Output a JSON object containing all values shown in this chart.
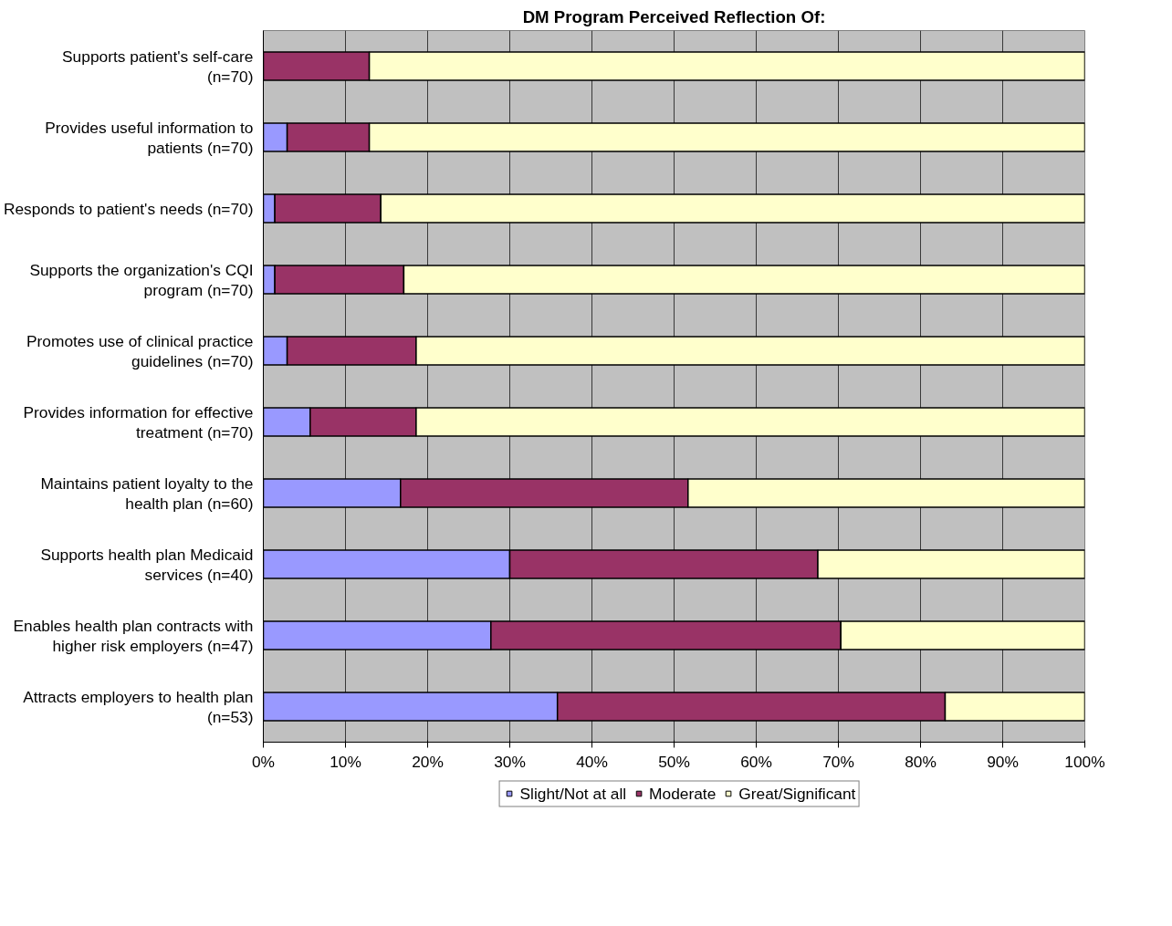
{
  "chart_data": {
    "type": "bar",
    "orientation": "horizontal",
    "stacked": true,
    "title": "DM Program Perceived Reflection Of:",
    "categories": [
      "Supports patient's self-care (n=70)",
      "Provides useful information to patients (n=70)",
      "Responds to patient's needs (n=70)",
      "Supports the organization's CQI program (n=70)",
      "Promotes use of clinical practice guidelines (n=70)",
      "Provides information for effective treatment (n=70)",
      "Maintains patient loyalty to the health plan (n=60)",
      "Supports health plan Medicaid services (n=40)",
      "Enables health plan contracts with higher risk employers (n=47)",
      "Attracts employers to health plan (n=53)"
    ],
    "series": [
      {
        "name": "Slight/Not at all",
        "color": "#9999ff",
        "values": [
          0,
          2.9,
          1.4,
          1.4,
          2.9,
          5.7,
          16.7,
          30.0,
          27.7,
          35.8
        ]
      },
      {
        "name": "Moderate",
        "color": "#993366",
        "values": [
          12.9,
          10.0,
          12.9,
          15.7,
          15.7,
          12.9,
          35.0,
          37.5,
          42.6,
          47.2
        ]
      },
      {
        "name": "Great/Significant",
        "color": "#ffffcc",
        "values": [
          87.1,
          87.1,
          85.7,
          82.9,
          81.4,
          81.4,
          48.3,
          32.5,
          29.7,
          17.0
        ]
      }
    ],
    "xlim": [
      0,
      100
    ],
    "xticks": [
      {
        "value": 0,
        "label": "0%"
      },
      {
        "value": 10,
        "label": "10%"
      },
      {
        "value": 20,
        "label": "20%"
      },
      {
        "value": 30,
        "label": "30%"
      },
      {
        "value": 40,
        "label": "40%"
      },
      {
        "value": 50,
        "label": "50%"
      },
      {
        "value": 60,
        "label": "60%"
      },
      {
        "value": 70,
        "label": "70%"
      },
      {
        "value": 80,
        "label": "80%"
      },
      {
        "value": 90,
        "label": "90%"
      },
      {
        "value": 100,
        "label": "100%"
      }
    ],
    "grid": "x",
    "legend": "bottom"
  }
}
